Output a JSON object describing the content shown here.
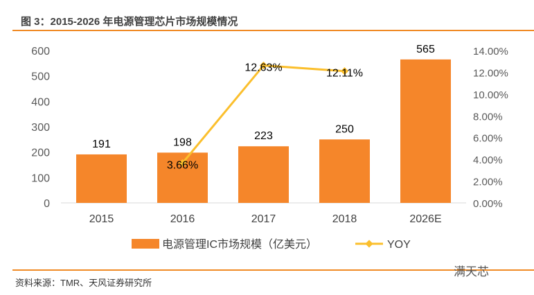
{
  "title": "图 3：2015-2026 年电源管理芯片市场规模情况",
  "source": "资料来源：TMR、天风证券研究所",
  "watermark": "满天芯",
  "colors": {
    "bar": "#F5862A",
    "line": "#FBBF2D",
    "rule": "#F08A24"
  },
  "chart_data": {
    "type": "bar+line",
    "categories": [
      "2015",
      "2016",
      "2017",
      "2018",
      "2026E"
    ],
    "series": [
      {
        "name": "电源管理IC市场规模（亿美元）",
        "type": "bar",
        "axis": "left",
        "values": [
          191,
          198,
          223,
          250,
          565
        ],
        "labels": [
          "191",
          "198",
          "223",
          "250",
          "565"
        ]
      },
      {
        "name": "YOY",
        "type": "line",
        "axis": "right",
        "values": [
          null,
          3.66,
          12.63,
          12.11,
          null
        ],
        "labels": [
          "",
          "3.66%",
          "12.63%",
          "12.11%",
          ""
        ]
      }
    ],
    "ylim": [
      0,
      600
    ],
    "yticks": [
      "0",
      "100",
      "200",
      "300",
      "400",
      "500",
      "600"
    ],
    "y2lim": [
      0,
      14
    ],
    "y2ticks": [
      "0.00%",
      "2.00%",
      "4.00%",
      "6.00%",
      "8.00%",
      "10.00%",
      "12.00%",
      "14.00%"
    ],
    "legend": "bottom",
    "grid": false
  }
}
